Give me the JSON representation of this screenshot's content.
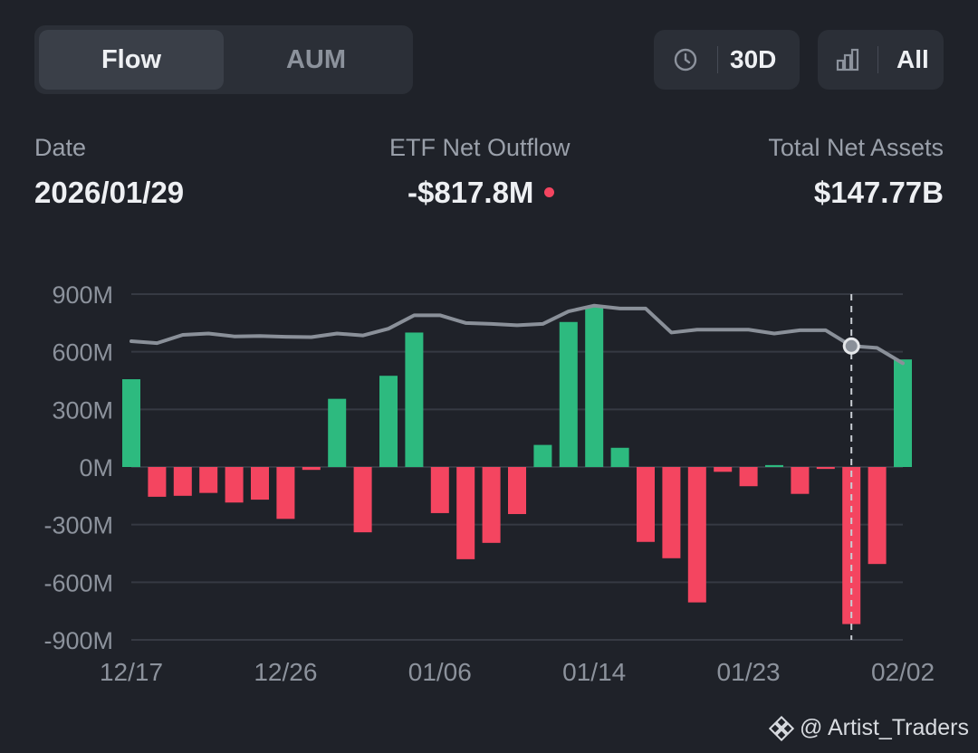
{
  "tabs": {
    "flow_label": "Flow",
    "aum_label": "AUM"
  },
  "controls": {
    "period_label": "30D",
    "period_icon": "clock-icon",
    "filter_label": "All",
    "filter_icon": "bar-chart-icon"
  },
  "summary": {
    "date_label": "Date",
    "date_value": "2026/01/29",
    "flow_label": "ETF Net Outflow",
    "flow_value": "-$817.8M",
    "flow_status_color": "#f44560",
    "assets_label": "Total Net Assets",
    "assets_value": "$147.77B"
  },
  "chart_data": {
    "type": "bar",
    "title": "",
    "xlabel": "",
    "ylabel": "",
    "ylim": [
      -900,
      900
    ],
    "y_ticks": [
      900,
      600,
      300,
      0,
      -300,
      -600,
      -900
    ],
    "y_tick_labels": [
      "900M",
      "600M",
      "300M",
      "0M",
      "-300M",
      "-600M",
      "-900M"
    ],
    "x_ticks": [
      {
        "index": 0,
        "label": "12/17"
      },
      {
        "index": 6,
        "label": "12/26"
      },
      {
        "index": 12,
        "label": "01/06"
      },
      {
        "index": 18,
        "label": "01/14"
      },
      {
        "index": 24,
        "label": "01/23"
      },
      {
        "index": 30,
        "label": "02/02"
      }
    ],
    "grid": true,
    "unit": "M USD",
    "positive_color": "#2dba7f",
    "negative_color": "#f44560",
    "line_color": "#8a9099",
    "series": [
      {
        "type": "bar",
        "values": [
          457,
          -155,
          -150,
          -135,
          -185,
          -170,
          -270,
          -15,
          355,
          -340,
          475,
          700,
          -240,
          -480,
          -395,
          -245,
          115,
          755,
          835,
          100,
          -390,
          -475,
          -705,
          -25,
          -100,
          10,
          -140,
          -10,
          -817.8,
          -505,
          560
        ]
      },
      {
        "type": "line",
        "values": [
          655,
          645,
          688,
          695,
          680,
          682,
          678,
          676,
          695,
          685,
          720,
          790,
          790,
          750,
          745,
          738,
          745,
          810,
          840,
          825,
          825,
          700,
          715,
          715,
          715,
          695,
          712,
          712,
          630,
          620,
          540
        ]
      }
    ],
    "selected_index": 28
  },
  "watermark": {
    "icon": "binance-logo-icon",
    "text": "@ Artist_Traders"
  }
}
